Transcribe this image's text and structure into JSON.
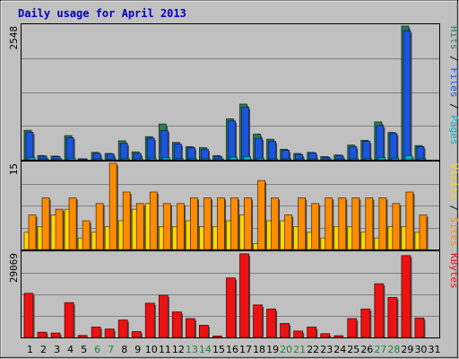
{
  "chart_data": {
    "type": "bar",
    "title": "Daily usage for April 2013",
    "categories": [
      "1",
      "2",
      "3",
      "4",
      "5",
      "6",
      "7",
      "8",
      "9",
      "10",
      "11",
      "12",
      "13",
      "14",
      "15",
      "16",
      "17",
      "18",
      "19",
      "20",
      "21",
      "22",
      "23",
      "24",
      "25",
      "26",
      "27",
      "28",
      "29",
      "30",
      "31"
    ],
    "weekend_days": [
      "6",
      "7",
      "13",
      "14",
      "20",
      "21",
      "27",
      "28"
    ],
    "colors": {
      "hits": "#2e7d52",
      "files": "#1a55e0",
      "pages": "#00b3c4",
      "visits": "#ffd700",
      "sites": "#ff8c00",
      "kbytes": "#ee1111",
      "weekend_label": "#208040",
      "panel_bg": "#c0c0c0",
      "title": "#0000c0"
    },
    "panels": [
      {
        "id": "hits-files-pages",
        "max_label": "2548",
        "ymax": 2548,
        "legend": [
          {
            "text": "Hits",
            "color": "#2e7d52"
          },
          {
            "text": "Files",
            "color": "#1a55e0"
          },
          {
            "text": "Pages",
            "color": "#00b3c4"
          }
        ],
        "series": [
          {
            "name": "Hits",
            "key": "hits",
            "values": [
              560,
              80,
              70,
              460,
              10,
              140,
              120,
              360,
              150,
              440,
              680,
              330,
              250,
              230,
              80,
              780,
              1060,
              490,
              390,
              200,
              120,
              140,
              60,
              90,
              280,
              370,
              720,
              520,
              2548,
              270,
              0
            ]
          },
          {
            "name": "Files",
            "key": "files",
            "values": [
              520,
              70,
              60,
              420,
              10,
              120,
              110,
              310,
              120,
              410,
              560,
              300,
              230,
              200,
              60,
              740,
              1000,
              410,
              350,
              180,
              100,
              130,
              50,
              80,
              250,
              350,
              650,
              500,
              2460,
              250,
              0
            ]
          },
          {
            "name": "Pages",
            "key": "pages",
            "values": [
              40,
              10,
              10,
              30,
              0,
              10,
              10,
              20,
              20,
              30,
              40,
              20,
              20,
              20,
              10,
              50,
              60,
              30,
              20,
              10,
              10,
              10,
              5,
              5,
              20,
              20,
              40,
              30,
              80,
              20,
              0
            ]
          }
        ]
      },
      {
        "id": "visits-sites",
        "max_label": "15",
        "ymax": 15,
        "legend": [
          {
            "text": "Visits",
            "color": "#ffd700"
          },
          {
            "text": "Sites",
            "color": "#ff8c00"
          }
        ],
        "series": [
          {
            "name": "Visits",
            "key": "visits",
            "values": [
              3,
              4,
              6,
              7,
              2,
              3,
              4,
              5,
              7,
              8,
              4,
              4,
              5,
              4,
              4,
              5,
              6,
              1,
              5,
              5,
              4,
              3,
              2,
              4,
              4,
              3,
              2,
              4,
              4,
              3,
              0
            ]
          },
          {
            "name": "Sites",
            "key": "sites",
            "values": [
              6,
              9,
              7,
              9,
              5,
              8,
              15,
              10,
              8,
              10,
              8,
              8,
              9,
              9,
              9,
              9,
              9,
              12,
              9,
              6,
              9,
              8,
              9,
              9,
              9,
              9,
              9,
              8,
              10,
              6,
              0
            ]
          }
        ]
      },
      {
        "id": "kbytes",
        "max_label": "29069",
        "ymax": 29069,
        "legend": [
          {
            "text": "KBytes",
            "color": "#ee1111"
          }
        ],
        "series": [
          {
            "name": "KBytes",
            "key": "kbytes",
            "values": [
              15200,
              1800,
              1500,
              12000,
              700,
              3600,
              2900,
              6000,
              2000,
              11800,
              14500,
              8800,
              6500,
              4200,
              500,
              20500,
              28800,
              11200,
              9800,
              4800,
              2200,
              3600,
              1300,
              600,
              6500,
              9800,
              18500,
              13800,
              28200,
              6700,
              0
            ]
          }
        ]
      }
    ]
  }
}
